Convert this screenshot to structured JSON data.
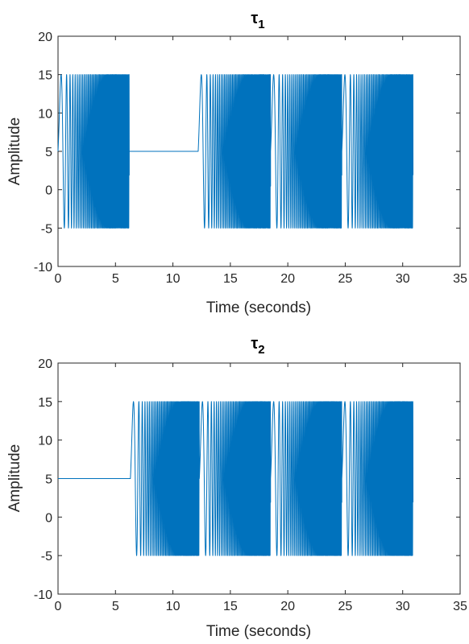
{
  "chart_data": [
    {
      "type": "line",
      "title": "τ",
      "title_subscript": "1",
      "xlabel": "Time (seconds)",
      "ylabel": "Amplitude",
      "xlim": [
        0,
        35
      ],
      "ylim": [
        -10,
        20
      ],
      "xticks": [
        0,
        5,
        10,
        15,
        20,
        25,
        30,
        35
      ],
      "yticks": [
        -10,
        -5,
        0,
        5,
        10,
        15,
        20
      ],
      "grid": false,
      "line_color": "#0072BD",
      "series": [
        {
          "signal": "chirp_segments",
          "offset": 5,
          "amplitude": 10,
          "t_end": 30.9,
          "chirp_segments": [
            {
              "t_start": 0.0,
              "t_end": 6.2
            },
            {
              "t_start": 12.2,
              "t_end": 18.5
            },
            {
              "t_start": 18.5,
              "t_end": 24.7
            },
            {
              "t_start": 24.7,
              "t_end": 30.9
            }
          ],
          "flat_segments": [
            {
              "t_start": 6.2,
              "t_end": 12.2,
              "value": 5
            }
          ]
        }
      ]
    },
    {
      "type": "line",
      "title": "τ",
      "title_subscript": "2",
      "xlabel": "Time (seconds)",
      "ylabel": "Amplitude",
      "xlim": [
        0,
        35
      ],
      "ylim": [
        -10,
        20
      ],
      "xticks": [
        0,
        5,
        10,
        15,
        20,
        25,
        30,
        35
      ],
      "yticks": [
        -10,
        -5,
        0,
        5,
        10,
        15,
        20
      ],
      "grid": false,
      "line_color": "#0072BD",
      "series": [
        {
          "signal": "chirp_segments",
          "offset": 5,
          "amplitude": 10,
          "t_end": 30.9,
          "chirp_segments": [
            {
              "t_start": 6.3,
              "t_end": 12.3
            },
            {
              "t_start": 12.3,
              "t_end": 18.5
            },
            {
              "t_start": 18.5,
              "t_end": 24.7
            },
            {
              "t_start": 24.7,
              "t_end": 30.9
            }
          ],
          "flat_segments": [
            {
              "t_start": 0.0,
              "t_end": 6.3,
              "value": 5
            }
          ]
        }
      ]
    }
  ]
}
